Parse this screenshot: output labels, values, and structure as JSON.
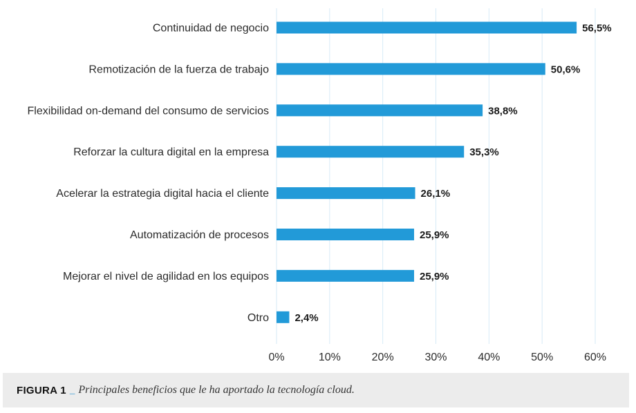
{
  "chart_data": {
    "type": "bar",
    "orientation": "horizontal",
    "categories": [
      "Continuidad de negocio",
      "Remotización de la fuerza de trabajo",
      "Flexibilidad on-demand del consumo de servicios",
      "Reforzar la cultura digital en la empresa",
      "Acelerar la estrategia digital hacia el cliente",
      "Automatización de procesos",
      "Mejorar el nivel de agilidad en los equipos",
      "Otro"
    ],
    "values": [
      56.5,
      50.6,
      38.8,
      35.3,
      26.1,
      25.9,
      25.9,
      2.4
    ],
    "value_labels": [
      "56,5%",
      "50,6%",
      "38,8%",
      "35,3%",
      "26,1%",
      "25,9%",
      "25,9%",
      "2,4%"
    ],
    "xlim": [
      0,
      60
    ],
    "x_ticks": [
      "0%",
      "10%",
      "20%",
      "30%",
      "40%",
      "50%",
      "60%"
    ],
    "grid": true,
    "bar_color": "#229ad8",
    "grid_color": "#d6eaf6"
  },
  "caption": {
    "label": "FIGURA 1",
    "separator": "_",
    "text": "Principales beneficios que le ha aportado la tecnología cloud."
  }
}
